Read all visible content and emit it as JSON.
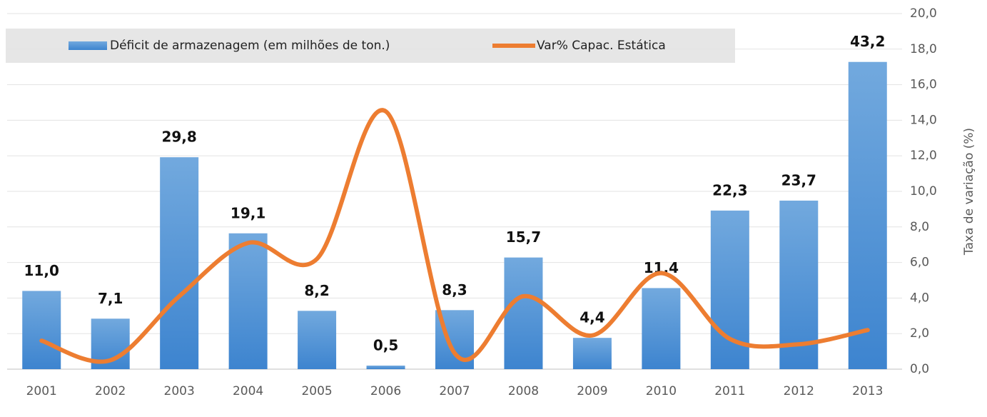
{
  "chart_data": {
    "type": "bar",
    "categories": [
      "2001",
      "2002",
      "2003",
      "2004",
      "2005",
      "2006",
      "2007",
      "2008",
      "2009",
      "2010",
      "2011",
      "2012",
      "2013"
    ],
    "series": [
      {
        "name": "Déficit de armazenagem (em milhões de ton.)",
        "type": "bar",
        "axis": "y",
        "color": "#4a8fd6",
        "values": [
          11.0,
          7.1,
          29.8,
          19.1,
          8.2,
          0.5,
          8.3,
          15.7,
          4.4,
          11.4,
          22.3,
          23.7,
          43.2
        ],
        "value_labels": [
          "11,0",
          "7,1",
          "29,8",
          "19,1",
          "8,2",
          "0,5",
          "8,3",
          "15,7",
          "4,4",
          "11,4",
          "22,3",
          "23,7",
          "43,2"
        ]
      },
      {
        "name": "Var% Capac. Estática",
        "type": "line",
        "axis": "y2",
        "color": "#ed7d31",
        "values": [
          1.6,
          0.5,
          4.1,
          7.1,
          6.2,
          14.5,
          0.9,
          4.1,
          1.9,
          5.4,
          1.7,
          1.4,
          2.2
        ]
      }
    ],
    "ylim": [
      0,
      50
    ],
    "y2lim": [
      0,
      20
    ],
    "y2ticks": [
      {
        "value": 0,
        "label": "0,0"
      },
      {
        "value": 2,
        "label": "2,0"
      },
      {
        "value": 4,
        "label": "4,0"
      },
      {
        "value": 6,
        "label": "6,0"
      },
      {
        "value": 8,
        "label": "8,0"
      },
      {
        "value": 10,
        "label": "10,0"
      },
      {
        "value": 12,
        "label": "12,0"
      },
      {
        "value": 14,
        "label": "14,0"
      },
      {
        "value": 16,
        "label": "16,0"
      },
      {
        "value": 18,
        "label": "18,0"
      },
      {
        "value": 20,
        "label": "20,0"
      }
    ],
    "y2label": "Taxa de variação (%)",
    "grid": true,
    "legend": "top"
  }
}
